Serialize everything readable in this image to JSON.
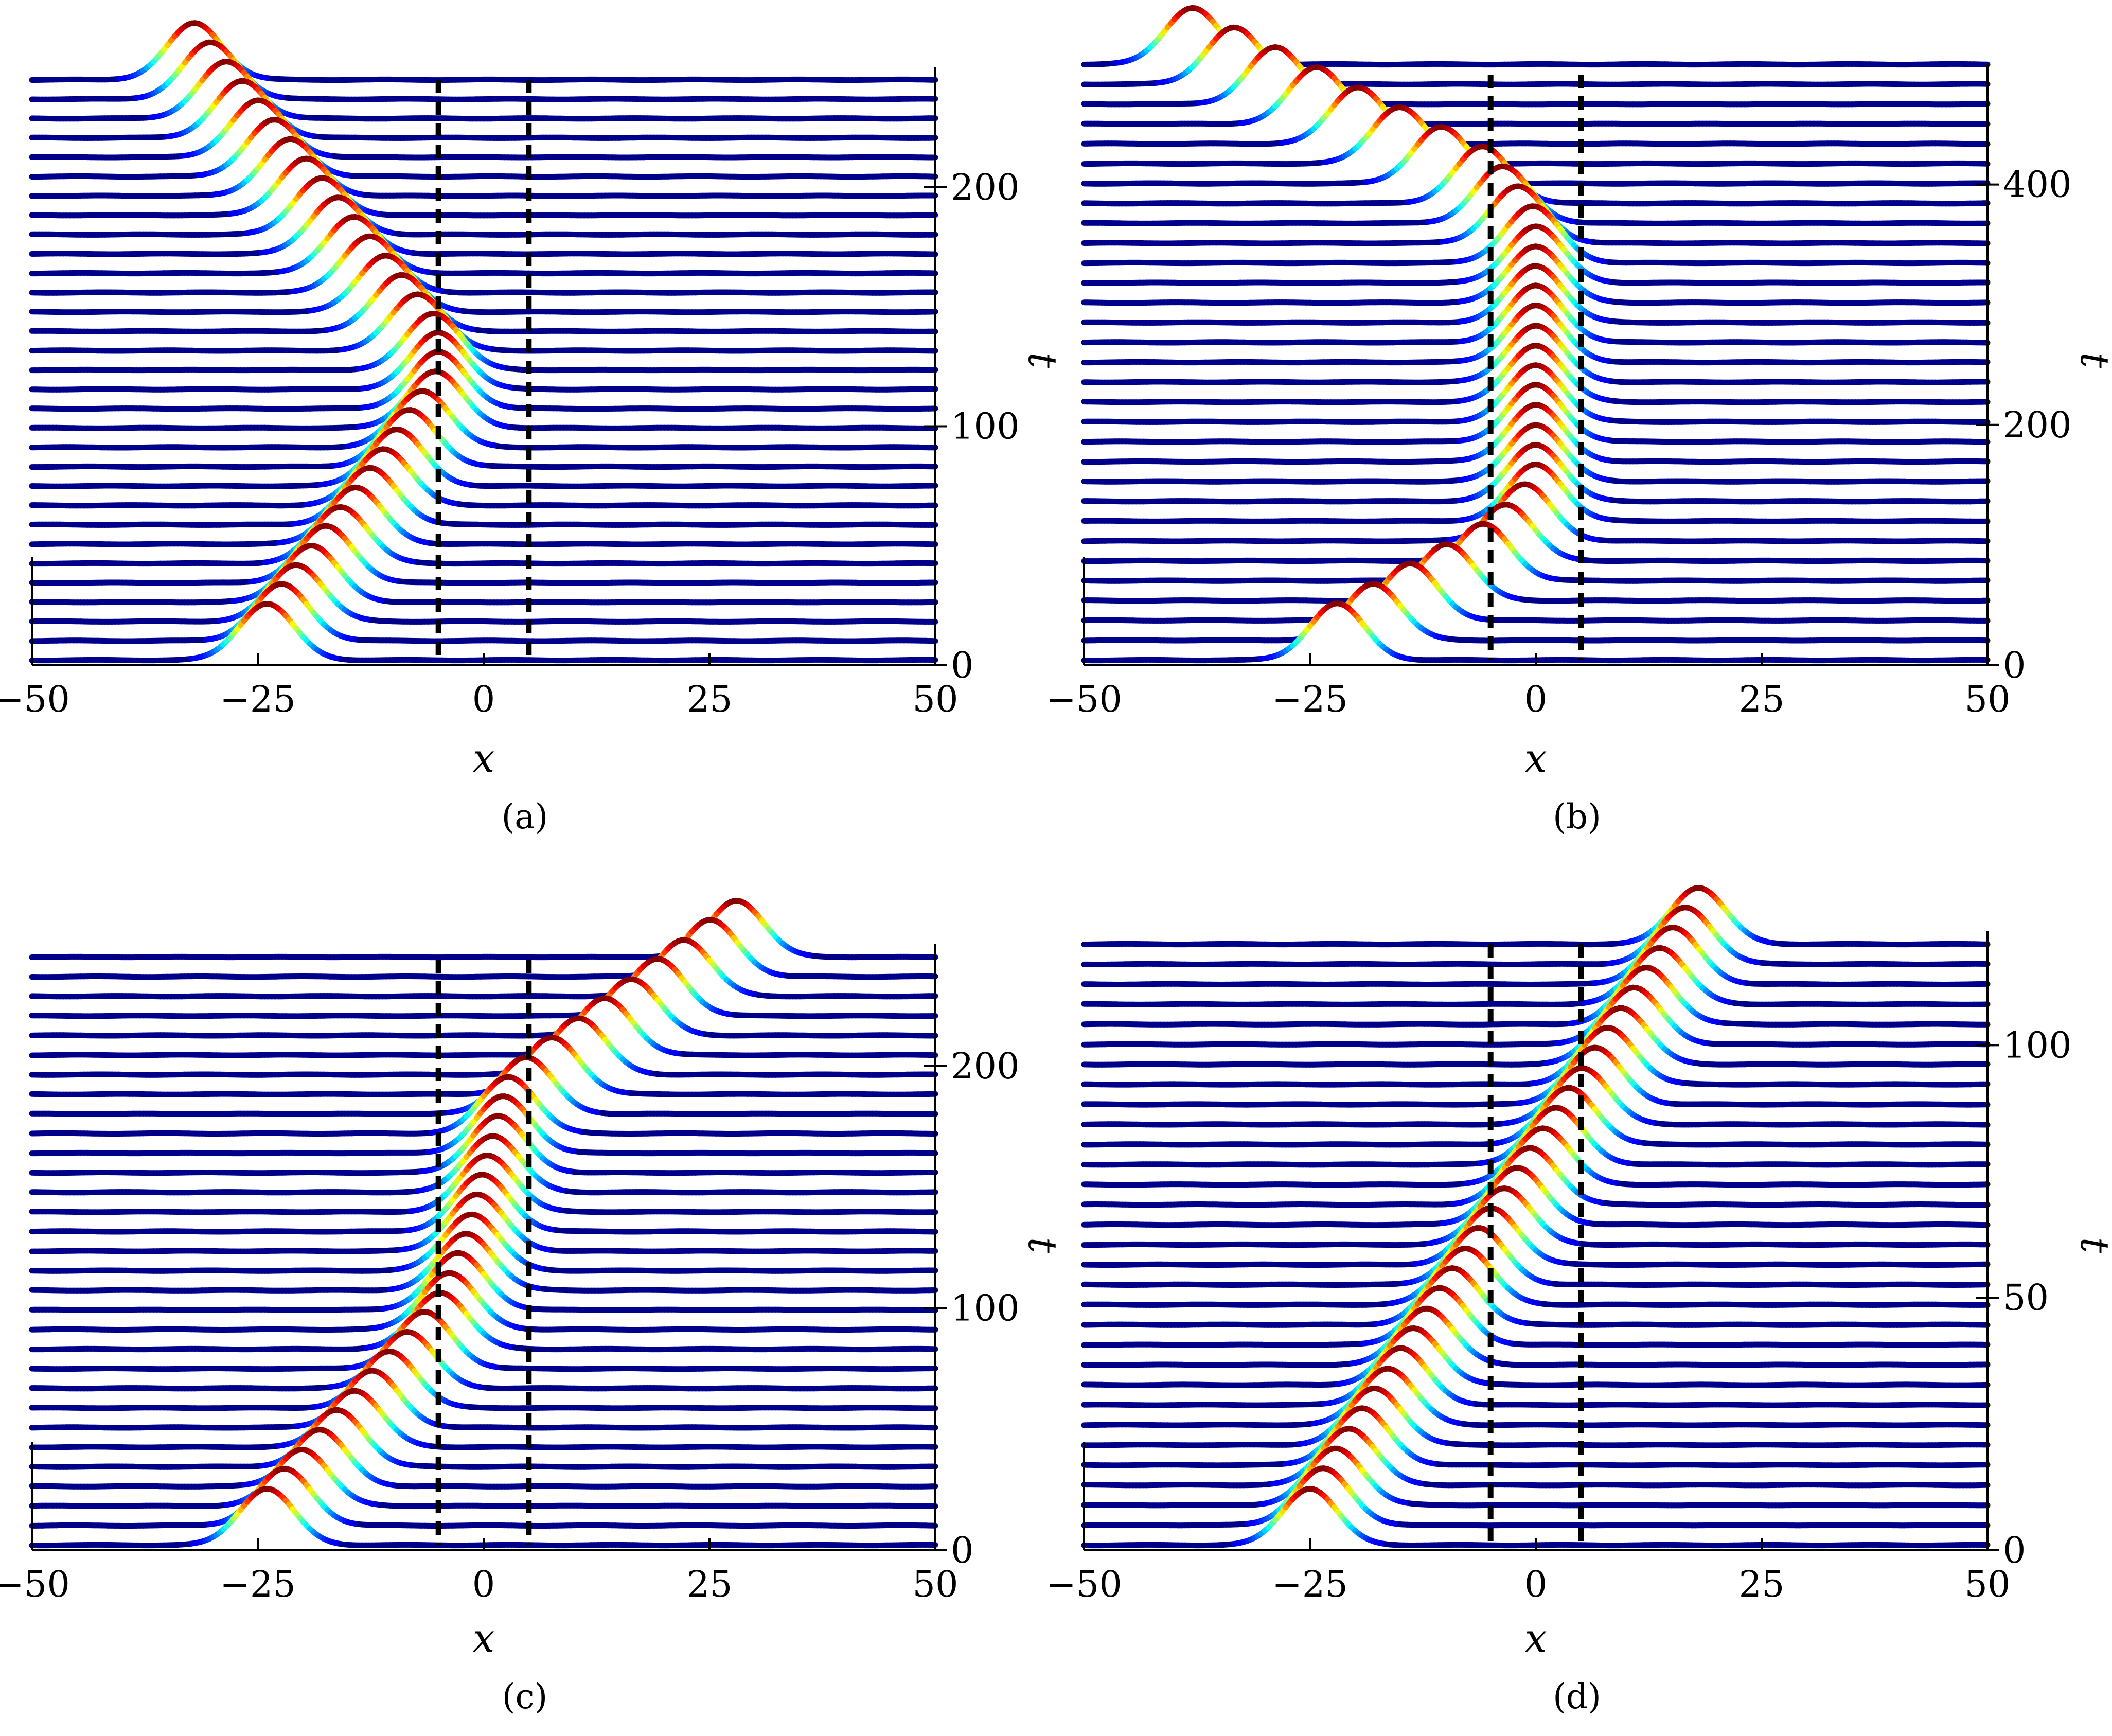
{
  "chart_data": [
    {
      "panel": "a",
      "caption": "(a)",
      "type": "line",
      "subtype": "waterfall",
      "xlabel": "x",
      "tlabel": "t",
      "xlim": [
        -50,
        50
      ],
      "tlim": [
        0,
        245
      ],
      "x_ticks": [
        -50,
        -25,
        0,
        25,
        50
      ],
      "x_tick_labels": [
        "−50",
        "−25",
        "0",
        "25",
        "50"
      ],
      "t_ticks": [
        0,
        100,
        200
      ],
      "t_tick_labels": [
        "0",
        "100",
        "200"
      ],
      "barrier_x": [
        -5,
        5
      ],
      "trace_count": 31,
      "pulse_x_start": -24,
      "pulse_x_end": -32,
      "pulse_path": [
        [
          0,
          -24
        ],
        [
          60,
          -12
        ],
        [
          100,
          -5
        ],
        [
          120,
          -5
        ],
        [
          245,
          -32
        ]
      ],
      "colors": {
        "low": "#00008b",
        "high": "#b30000",
        "barrier": "#000000"
      }
    },
    {
      "panel": "b",
      "caption": "(b)",
      "type": "line",
      "subtype": "waterfall",
      "xlabel": "x",
      "tlabel": "t",
      "xlim": [
        -50,
        50
      ],
      "tlim": [
        0,
        500
      ],
      "x_ticks": [
        -50,
        -25,
        0,
        25,
        50
      ],
      "x_tick_labels": [
        "−50",
        "−25",
        "0",
        "25",
        "50"
      ],
      "t_ticks": [
        0,
        200,
        400
      ],
      "t_tick_labels": [
        "0",
        "200",
        "400"
      ],
      "barrier_x": [
        -5,
        5
      ],
      "trace_count": 31,
      "pulse_x_start": -22,
      "pulse_x_end": -38,
      "pulse_path": [
        [
          0,
          -22
        ],
        [
          70,
          -5
        ],
        [
          110,
          0
        ],
        [
          330,
          0
        ],
        [
          380,
          -5
        ],
        [
          500,
          -38
        ]
      ],
      "colors": {
        "low": "#00008b",
        "high": "#b30000",
        "barrier": "#000000"
      }
    },
    {
      "panel": "c",
      "caption": "(c)",
      "type": "line",
      "subtype": "waterfall",
      "xlabel": "x",
      "tlabel": "t",
      "xlim": [
        -50,
        50
      ],
      "tlim": [
        0,
        245
      ],
      "x_ticks": [
        -50,
        -25,
        0,
        25,
        50
      ],
      "x_tick_labels": [
        "−50",
        "−25",
        "0",
        "25",
        "50"
      ],
      "t_ticks": [
        0,
        100,
        200
      ],
      "t_tick_labels": [
        "0",
        "100",
        "200"
      ],
      "barrier_x": [
        -5,
        5
      ],
      "trace_count": 31,
      "pulse_x_start": -24,
      "pulse_x_end": 28,
      "pulse_path": [
        [
          0,
          -24
        ],
        [
          80,
          -5
        ],
        [
          105,
          -2
        ],
        [
          175,
          3
        ],
        [
          245,
          28
        ]
      ],
      "colors": {
        "low": "#00008b",
        "high": "#b30000",
        "barrier": "#000000"
      }
    },
    {
      "panel": "d",
      "caption": "(d)",
      "type": "line",
      "subtype": "waterfall",
      "xlabel": "x",
      "tlabel": "t",
      "xlim": [
        -50,
        50
      ],
      "tlim": [
        0,
        120
      ],
      "x_ticks": [
        -50,
        -25,
        0,
        25,
        50
      ],
      "x_tick_labels": [
        "−50",
        "−25",
        "0",
        "25",
        "50"
      ],
      "t_ticks": [
        0,
        50,
        100
      ],
      "t_tick_labels": [
        "0",
        "50",
        "100"
      ],
      "barrier_x": [
        -5,
        5
      ],
      "trace_count": 31,
      "pulse_x_start": -25,
      "pulse_x_end": 18,
      "pulse_path": [
        [
          0,
          -25
        ],
        [
          120,
          18
        ]
      ],
      "colors": {
        "low": "#00008b",
        "high": "#b30000",
        "barrier": "#000000"
      }
    }
  ]
}
